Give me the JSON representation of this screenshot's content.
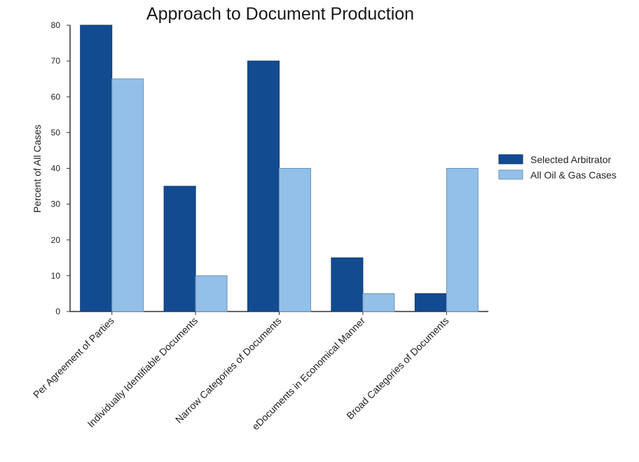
{
  "chart_data": {
    "type": "bar",
    "title": "Approach to Document Production",
    "xlabel": "",
    "ylabel": "Percent of All Cases",
    "ylim": [
      0,
      80
    ],
    "yticks": [
      0,
      10,
      20,
      30,
      40,
      50,
      60,
      70,
      80
    ],
    "categories": [
      "Per Agreement of Parties",
      "Individually Identifiable Documents",
      "Narrow Categories of Documents",
      "eDocuments in Economical Manner",
      "Broad Categories of Documents"
    ],
    "series": [
      {
        "name": "Selected Arbitrator",
        "color": "#134b91",
        "values": [
          80,
          35,
          70,
          15,
          5
        ]
      },
      {
        "name": "All Oil & Gas Cases",
        "color": "#92c0e8",
        "values": [
          65,
          10,
          40,
          5,
          40
        ]
      }
    ],
    "grid": false,
    "legend_position": "right"
  }
}
